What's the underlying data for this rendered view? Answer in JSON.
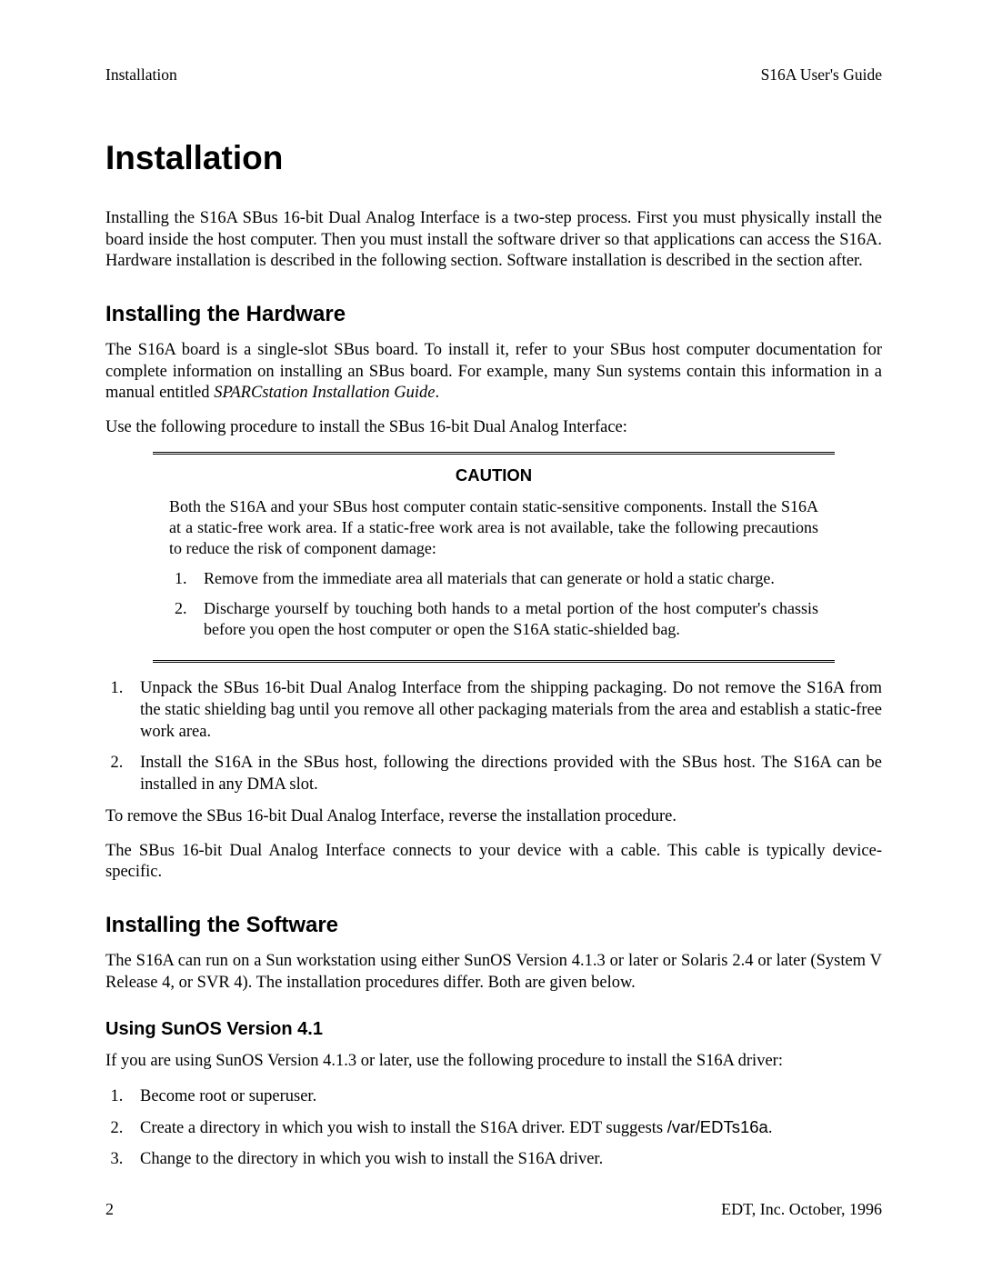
{
  "header": {
    "left": "Installation",
    "right": "S16A User's Guide"
  },
  "title": "Installation",
  "intro": "Installing the S16A SBus 16-bit Dual Analog Interface is a two-step process. First you must physically install the board inside the host computer. Then you must install the software driver so that applications can access the S16A. Hardware installation is described in the following section. Software installation is described in the section after.",
  "hardware": {
    "heading": "Installing the Hardware",
    "para1_a": "The S16A board is a single-slot SBus board. To install it, refer to your SBus host computer documentation for complete information on installing an SBus board. For example, many Sun systems contain this information in a manual entitled ",
    "para1_em": "SPARCstation Installation Guide",
    "para1_b": ".",
    "para2": "Use the following procedure to install the SBus 16-bit Dual Analog Interface:",
    "caution": {
      "title": "CAUTION",
      "para": "Both the S16A and your SBus host computer contain static-sensitive components. Install the S16A at a static-free work area. If a static-free work area is not available, take the following precautions to reduce the risk of component damage:",
      "items": [
        "Remove from the immediate area all materials that can generate or hold a static charge.",
        "Discharge yourself by touching both hands to a metal portion of the host computer's chassis before you open the host computer or open the S16A static-shielded bag."
      ]
    },
    "steps": [
      "Unpack the SBus 16-bit Dual Analog Interface from the shipping packaging. Do not remove the S16A from the static shielding bag until you remove all other packaging materials from the area and establish a static-free work area.",
      "Install the S16A in the SBus host, following the directions provided with the SBus host. The S16A can be installed in any DMA slot."
    ],
    "para3": "To remove the SBus 16-bit Dual Analog Interface, reverse the installation procedure.",
    "para4": "The SBus 16-bit Dual Analog Interface connects to your device with a cable. This cable is typically device-specific."
  },
  "software": {
    "heading": "Installing the Software",
    "para1": "The S16A can run on a Sun workstation using either SunOS Version 4.1.3 or later or Solaris 2.4 or later (System V Release 4, or SVR 4). The installation procedures differ. Both are given below.",
    "sunos": {
      "heading": "Using SunOS Version 4.1",
      "para": "If you are using SunOS Version 4.1.3 or later, use the following procedure to install the S16A driver:",
      "step1": "Become root or superuser.",
      "step2_a": "Create a directory in which you wish to install the S16A driver. EDT suggests ",
      "step2_code": "/var/EDTs16a",
      "step2_b": ".",
      "step3": "Change to the directory in which you wish to install the S16A driver."
    }
  },
  "footer": {
    "page": "2",
    "right": "EDT, Inc.  October, 1996"
  }
}
